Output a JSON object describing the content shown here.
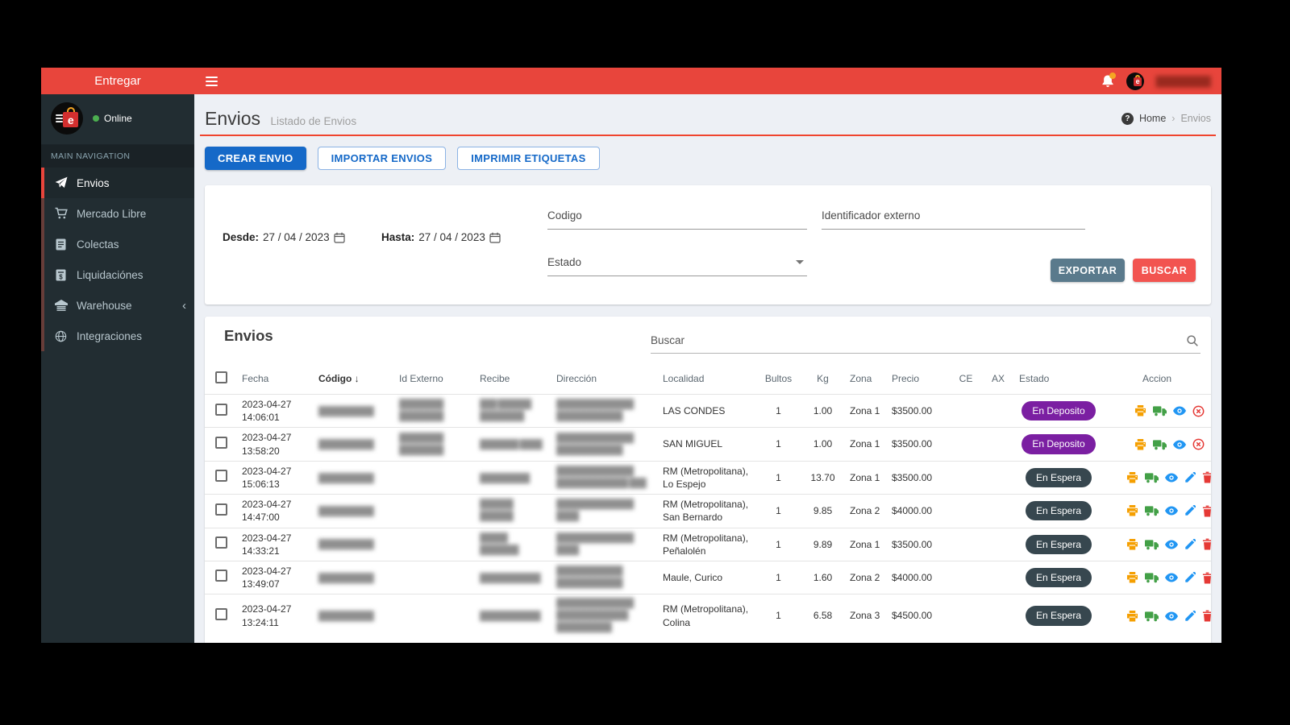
{
  "topbar": {
    "brand": "Entregar",
    "username_redacted": "█████████"
  },
  "sidebar": {
    "status": "Online",
    "section": "MAIN NAVIGATION",
    "items": [
      {
        "label": "Envios",
        "active": true
      },
      {
        "label": "Mercado Libre"
      },
      {
        "label": "Colectas"
      },
      {
        "label": "Liquidaciónes"
      },
      {
        "label": "Warehouse",
        "chevron": "‹"
      },
      {
        "label": "Integraciones"
      }
    ]
  },
  "header": {
    "title": "Envios",
    "subtitle": "Listado de Envios",
    "help_glyph": "?",
    "breadcrumb_home": "Home",
    "breadcrumb_sep": "›",
    "breadcrumb_current": "Envios"
  },
  "toolbar": {
    "crear": "CREAR ENVIO",
    "importar": "IMPORTAR ENVIOS",
    "imprimir": "IMPRIMIR ETIQUETAS"
  },
  "filters": {
    "desde_label": "Desde:",
    "desde_value": "27 / 04 / 2023",
    "hasta_label": "Hasta:",
    "hasta_value": "27 / 04 / 2023",
    "codigo_label": "Codigo",
    "identificador_label": "Identificador externo",
    "estado_label": "Estado",
    "exportar": "EXPORTAR",
    "buscar": "BUSCAR"
  },
  "list": {
    "title": "Envios",
    "search_label": "Buscar",
    "sort_arrow": "↓",
    "columns": [
      "Fecha",
      "Código",
      "Id Externo",
      "Recibe",
      "Dirección",
      "Localidad",
      "Bultos",
      "Kg",
      "Zona",
      "Precio",
      "CE",
      "AX",
      "Estado",
      "Accion"
    ],
    "rows": [
      {
        "fecha": "2023-04-27",
        "hora": "14:06:01",
        "codigo": "██████████",
        "id_externo": "████████ ████████",
        "recibe": "███ ██████ ████████",
        "direccion": "██████████████ ████████████",
        "localidad": "LAS CONDES",
        "bultos": "1",
        "kg": "1.00",
        "zona": "Zona 1",
        "precio": "$3500.00",
        "ce": "",
        "ax": "",
        "estado": "En Deposito",
        "estado_style": "deposito",
        "actions": [
          "print",
          "truck",
          "eye",
          "cancel"
        ]
      },
      {
        "fecha": "2023-04-27",
        "hora": "13:58:20",
        "codigo": "██████████",
        "id_externo": "████████ ████████",
        "recibe": "███████ ████",
        "direccion": "██████████████ ████████████",
        "localidad": "SAN MIGUEL",
        "bultos": "1",
        "kg": "1.00",
        "zona": "Zona 1",
        "precio": "$3500.00",
        "ce": "",
        "ax": "",
        "estado": "En Deposito",
        "estado_style": "deposito",
        "actions": [
          "print",
          "truck",
          "eye",
          "cancel"
        ]
      },
      {
        "fecha": "2023-04-27",
        "hora": "15:06:13",
        "codigo": "██████████",
        "id_externo": "",
        "recibe": "█████████",
        "direccion": "██████████████ █████████████ ███",
        "localidad": "RM (Metropolitana), Lo Espejo",
        "bultos": "1",
        "kg": "13.70",
        "zona": "Zona 1",
        "precio": "$3500.00",
        "ce": "",
        "ax": "",
        "estado": "En Espera",
        "estado_style": "espera",
        "actions": [
          "print",
          "truck",
          "eye",
          "edit",
          "delete"
        ]
      },
      {
        "fecha": "2023-04-27",
        "hora": "14:47:00",
        "codigo": "██████████",
        "id_externo": "",
        "recibe": "██████ ██████",
        "direccion": "██████████████ ████",
        "localidad": "RM (Metropolitana), San Bernardo",
        "bultos": "1",
        "kg": "9.85",
        "zona": "Zona 2",
        "precio": "$4000.00",
        "ce": "",
        "ax": "",
        "estado": "En Espera",
        "estado_style": "espera",
        "actions": [
          "print",
          "truck",
          "eye",
          "edit",
          "delete"
        ]
      },
      {
        "fecha": "2023-04-27",
        "hora": "14:33:21",
        "codigo": "██████████",
        "id_externo": "",
        "recibe": "█████ ███████",
        "direccion": "██████████████ ████",
        "localidad": "RM (Metropolitana), Peñalolén",
        "bultos": "1",
        "kg": "9.89",
        "zona": "Zona 1",
        "precio": "$3500.00",
        "ce": "",
        "ax": "",
        "estado": "En Espera",
        "estado_style": "espera",
        "actions": [
          "print",
          "truck",
          "eye",
          "edit",
          "delete"
        ]
      },
      {
        "fecha": "2023-04-27",
        "hora": "13:49:07",
        "codigo": "██████████",
        "id_externo": "",
        "recibe": "███████████",
        "direccion": "████████████ ████████████",
        "localidad": "Maule, Curico",
        "bultos": "1",
        "kg": "1.60",
        "zona": "Zona 2",
        "precio": "$4000.00",
        "ce": "",
        "ax": "",
        "estado": "En Espera",
        "estado_style": "espera",
        "actions": [
          "print",
          "truck",
          "eye",
          "edit",
          "delete"
        ]
      },
      {
        "fecha": "2023-04-27",
        "hora": "13:24:11",
        "codigo": "██████████",
        "id_externo": "",
        "recibe": "███████████",
        "direccion": "██████████████ █████████████ ██████████",
        "localidad": "RM (Metropolitana), Colina",
        "bultos": "1",
        "kg": "6.58",
        "zona": "Zona 3",
        "precio": "$4500.00",
        "ce": "",
        "ax": "",
        "estado": "En Espera",
        "estado_style": "espera",
        "actions": [
          "print",
          "truck",
          "eye",
          "edit",
          "delete"
        ]
      }
    ]
  },
  "colors": {
    "topbar_red": "#e8453c",
    "rule_red": "#f0442e",
    "primary_blue": "#1569c8",
    "export_slate": "#5a7a8c",
    "buscar_red": "#f25450",
    "badge_deposito": "#7b1fa2",
    "badge_espera": "#37474f",
    "sidebar_bg": "#222d32"
  }
}
